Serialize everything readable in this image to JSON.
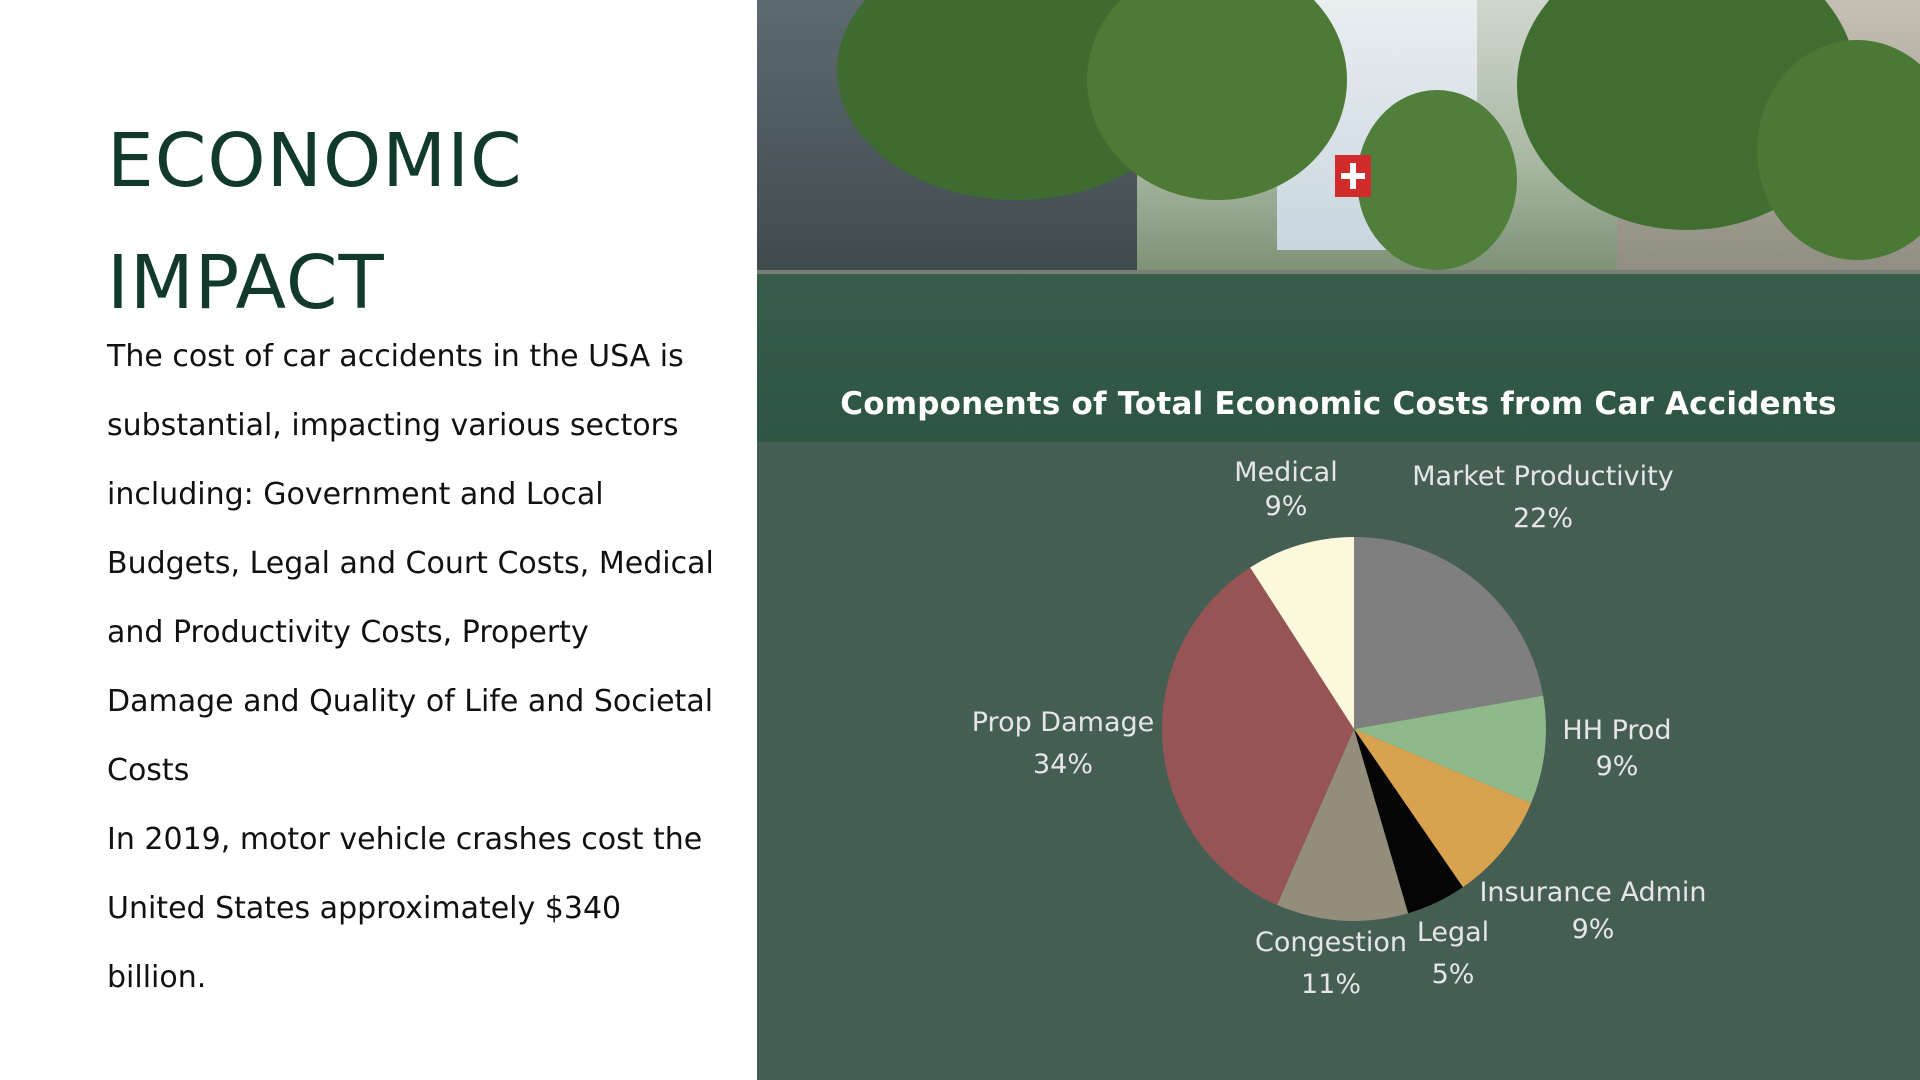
{
  "slide": {
    "title_line1": "ECONOMIC",
    "title_line2": "IMPACT",
    "paragraph1": "The cost of car accidents in the USA is substantial, impacting various sectors including: Government and Local Budgets, Legal and Court Costs, Medical and Productivity Costs, Property Damage and Quality of Life and Societal Costs",
    "paragraph2": "In 2019, motor vehicle crashes cost the United States approximately $340 billion."
  },
  "chart_data": {
    "type": "pie",
    "title": "Components of Total Economic Costs from Car Accidents",
    "labels": [
      "Market Productivity",
      "HH Prod",
      "Insurance Admin",
      "Legal",
      "Congestion",
      "Prop Damage",
      "Medical"
    ],
    "label_texts": [
      "Market Productivity",
      "HH Prod",
      "Insurance Admin",
      "Legal",
      "Congestion",
      "Prop Damage",
      "Medical"
    ],
    "percent_texts": [
      "22%",
      "9%",
      "9%",
      "5%",
      "11%",
      "34%",
      "9%"
    ],
    "values": [
      22,
      9,
      9,
      5,
      11,
      34,
      9
    ],
    "colors": [
      "#7f7f7f",
      "#8fb98a",
      "#d9a24e",
      "#050505",
      "#958d7c",
      "#975455",
      "#fcf8dc"
    ],
    "legend": "none"
  },
  "colors": {
    "title": "#123a2c",
    "chart_bg": "#455e54",
    "overlay": "#1c503a"
  }
}
